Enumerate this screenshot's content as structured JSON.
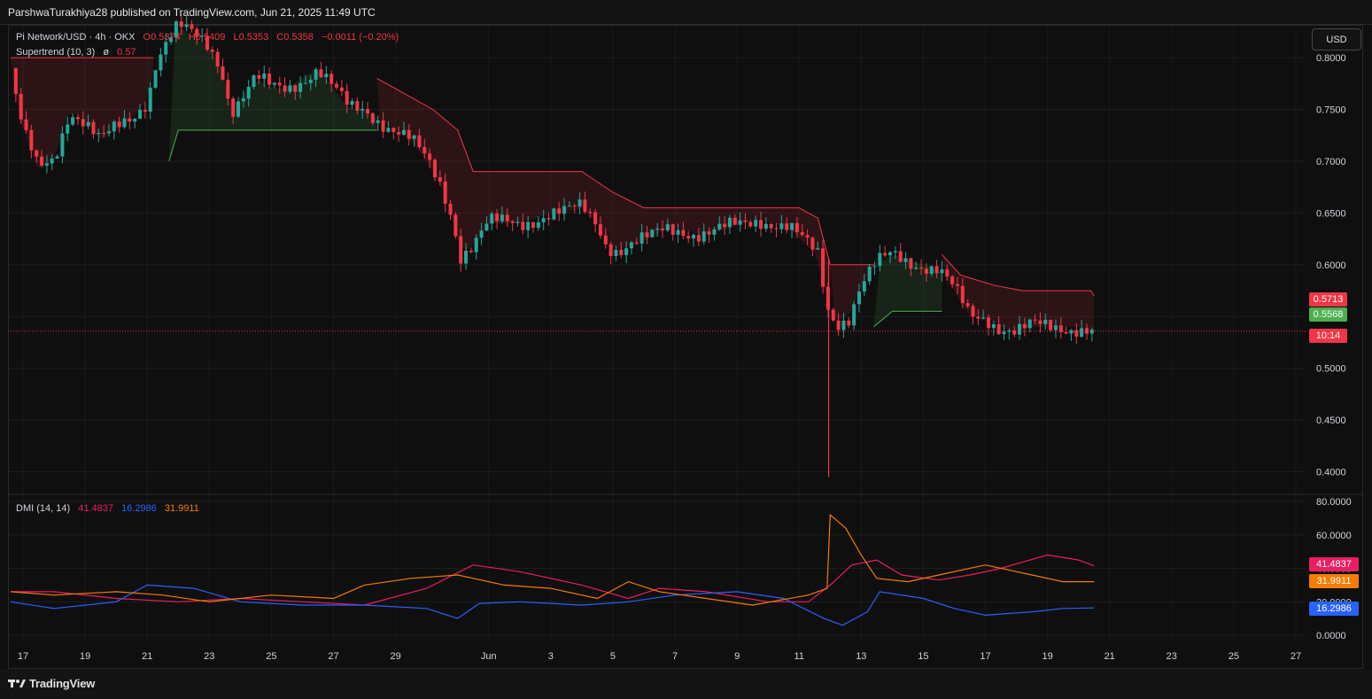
{
  "header": {
    "publisher_line": "ParshwaTurakhiya28 published on TradingView.com, Jun 21, 2025 11:49 UTC"
  },
  "legend": {
    "symbol": "Pi Network/USD · 4h · OKX",
    "open": "O0.5374",
    "high": "H0.5409",
    "low": "L0.5353",
    "close": "C0.5358",
    "change": "−0.0011 (−0.20%)",
    "supertrend_label": "Supertrend (10, 3)",
    "supertrend_icon": "ø",
    "supertrend_value": "0.57"
  },
  "dmi_legend": {
    "label": "DMI (14, 14)",
    "plus_di": "41.4837",
    "minus_di": "16.2986",
    "adx": "31.9911"
  },
  "currency_button": "USD",
  "price_tags": [
    {
      "text": "0.5713",
      "color": "#f23645"
    },
    {
      "text": "0.5568",
      "color": "#4caf50"
    },
    {
      "text": "10:14",
      "color": "#f23645"
    }
  ],
  "dmi_tags": [
    {
      "text": "41.4837",
      "color": "#e91e63"
    },
    {
      "text": "31.9911",
      "color": "#f57c00"
    },
    {
      "text": "16.2986",
      "color": "#2962ff"
    }
  ],
  "branding": "TradingView",
  "colors": {
    "up": "#26a69a",
    "down": "#f23645",
    "plus_di": "#e91e63",
    "minus_di": "#2962ff",
    "adx": "#f57c00",
    "st_up": "#4caf50",
    "st_down": "#f23645"
  },
  "chart_data": [
    {
      "type": "candlestick",
      "title": "Pi Network/USD · 4h · OKX",
      "ylim": [
        0.38,
        0.83
      ],
      "y_ticks": [
        "0.8000",
        "0.7500",
        "0.7000",
        "0.6500",
        "0.6000",
        "0.5500",
        "0.5000",
        "0.4500",
        "0.4000"
      ],
      "x_ticks": [
        "17",
        "19",
        "21",
        "23",
        "25",
        "27",
        "29",
        "Jun",
        "3",
        "5",
        "7",
        "9",
        "11",
        "13",
        "15",
        "17",
        "19",
        "21",
        "23",
        "25",
        "27"
      ],
      "x_range_days": [
        16.6,
        58.2
      ],
      "last_price": 0.5358,
      "close_path": [
        [
          16.6,
          0.79
        ],
        [
          17.0,
          0.73
        ],
        [
          17.5,
          0.69
        ],
        [
          18.0,
          0.7
        ],
        [
          18.5,
          0.75
        ],
        [
          19.0,
          0.74
        ],
        [
          19.5,
          0.72
        ],
        [
          20.0,
          0.73
        ],
        [
          20.5,
          0.74
        ],
        [
          21.0,
          0.76
        ],
        [
          21.3,
          0.8
        ],
        [
          21.7,
          0.82
        ],
        [
          22.0,
          0.83
        ],
        [
          22.5,
          0.82
        ],
        [
          23.0,
          0.81
        ],
        [
          23.4,
          0.79
        ],
        [
          23.7,
          0.75
        ],
        [
          24.0,
          0.76
        ],
        [
          24.5,
          0.78
        ],
        [
          25.0,
          0.77
        ],
        [
          25.5,
          0.77
        ],
        [
          26.0,
          0.78
        ],
        [
          26.5,
          0.79
        ],
        [
          27.0,
          0.77
        ],
        [
          27.5,
          0.75
        ],
        [
          28.0,
          0.75
        ],
        [
          28.5,
          0.74
        ],
        [
          29.0,
          0.73
        ],
        [
          29.5,
          0.72
        ],
        [
          30.0,
          0.7
        ],
        [
          30.4,
          0.68
        ],
        [
          30.8,
          0.65
        ],
        [
          31.1,
          0.61
        ],
        [
          31.5,
          0.62
        ],
        [
          32.0,
          0.64
        ],
        [
          32.5,
          0.64
        ],
        [
          33.0,
          0.64
        ],
        [
          33.5,
          0.645
        ],
        [
          34.0,
          0.65
        ],
        [
          34.5,
          0.65
        ],
        [
          35.0,
          0.655
        ],
        [
          35.5,
          0.64
        ],
        [
          35.8,
          0.62
        ],
        [
          36.2,
          0.615
        ],
        [
          36.7,
          0.62
        ],
        [
          37.2,
          0.625
        ],
        [
          37.7,
          0.635
        ],
        [
          38.2,
          0.635
        ],
        [
          38.7,
          0.63
        ],
        [
          39.2,
          0.63
        ],
        [
          39.7,
          0.635
        ],
        [
          40.2,
          0.64
        ],
        [
          40.7,
          0.645
        ],
        [
          41.2,
          0.64
        ],
        [
          41.7,
          0.635
        ],
        [
          42.2,
          0.62
        ],
        [
          42.6,
          0.61
        ],
        [
          42.9,
          0.56
        ],
        [
          43.2,
          0.545
        ],
        [
          43.6,
          0.55
        ],
        [
          44.0,
          0.58
        ],
        [
          44.5,
          0.6
        ],
        [
          45.0,
          0.61
        ],
        [
          45.5,
          0.605
        ],
        [
          46.0,
          0.6
        ],
        [
          46.5,
          0.595
        ],
        [
          47.0,
          0.575
        ],
        [
          47.5,
          0.55
        ],
        [
          48.0,
          0.55
        ],
        [
          48.5,
          0.54
        ],
        [
          49.0,
          0.535
        ],
        [
          49.5,
          0.54
        ],
        [
          50.0,
          0.54
        ],
        [
          50.5,
          0.54
        ],
        [
          51.0,
          0.54
        ],
        [
          51.5,
          0.5358
        ]
      ],
      "wicks": [
        {
          "x": 42.95,
          "low": 0.395,
          "high": 0.605
        }
      ],
      "supertrend": {
        "label": "Supertrend (10, 3)",
        "segments": [
          {
            "trend": "down",
            "points": [
              [
                16.6,
                0.8
              ],
              [
                18.5,
                0.8
              ],
              [
                21.2,
                0.8
              ]
            ]
          },
          {
            "trend": "up",
            "points": [
              [
                21.7,
                0.7
              ],
              [
                22.0,
                0.73
              ],
              [
                28.4,
                0.73
              ]
            ]
          },
          {
            "trend": "down",
            "points": [
              [
                28.4,
                0.78
              ],
              [
                29.0,
                0.77
              ],
              [
                29.6,
                0.76
              ],
              [
                30.2,
                0.75
              ],
              [
                31.0,
                0.73
              ],
              [
                31.5,
                0.69
              ],
              [
                35.0,
                0.69
              ],
              [
                36.0,
                0.67
              ],
              [
                37.0,
                0.655
              ],
              [
                42.0,
                0.655
              ],
              [
                42.6,
                0.645
              ],
              [
                43.0,
                0.6
              ]
            ]
          },
          {
            "trend": "down",
            "points": [
              [
                43.0,
                0.6
              ],
              [
                44.4,
                0.6
              ]
            ]
          },
          {
            "trend": "up",
            "points": [
              [
                44.4,
                0.54
              ],
              [
                45.0,
                0.555
              ],
              [
                46.6,
                0.555
              ]
            ]
          },
          {
            "trend": "down",
            "points": [
              [
                46.6,
                0.61
              ],
              [
                47.2,
                0.59
              ],
              [
                48.3,
                0.58
              ],
              [
                49.2,
                0.575
              ],
              [
                51.4,
                0.575
              ],
              [
                51.5,
                0.57
              ]
            ]
          }
        ]
      }
    },
    {
      "type": "line",
      "title": "DMI (14, 14)",
      "ylim": [
        0,
        80
      ],
      "y_ticks": [
        "80.0000",
        "60.0000",
        "40.0000",
        "20.0000",
        "0.0000"
      ],
      "series": [
        {
          "name": "+DI",
          "color": "#e91e63",
          "points": [
            [
              16.6,
              26
            ],
            [
              18,
              26
            ],
            [
              20,
              22
            ],
            [
              22,
              20
            ],
            [
              24,
              22
            ],
            [
              26,
              20
            ],
            [
              28,
              18
            ],
            [
              30,
              28
            ],
            [
              31.5,
              42
            ],
            [
              33,
              38
            ],
            [
              35,
              30
            ],
            [
              36.5,
              22
            ],
            [
              37.5,
              28
            ],
            [
              39,
              26
            ],
            [
              41,
              20
            ],
            [
              42.3,
              20
            ],
            [
              43.0,
              30
            ],
            [
              43.7,
              42
            ],
            [
              44.5,
              45
            ],
            [
              45.3,
              36
            ],
            [
              46.5,
              33
            ],
            [
              47.5,
              36
            ],
            [
              48.5,
              40
            ],
            [
              50.0,
              48
            ],
            [
              51.0,
              45
            ],
            [
              51.5,
              41.4837
            ]
          ]
        },
        {
          "name": "−DI",
          "color": "#2962ff",
          "points": [
            [
              16.6,
              20
            ],
            [
              18,
              16
            ],
            [
              20,
              20
            ],
            [
              21,
              30
            ],
            [
              22.5,
              28
            ],
            [
              24,
              20
            ],
            [
              26,
              18
            ],
            [
              28,
              18
            ],
            [
              30,
              16
            ],
            [
              31.0,
              10
            ],
            [
              31.7,
              19
            ],
            [
              33,
              20
            ],
            [
              35,
              18
            ],
            [
              36.5,
              20
            ],
            [
              38,
              24
            ],
            [
              40,
              26
            ],
            [
              41.5,
              22
            ],
            [
              42.8,
              10
            ],
            [
              43.4,
              6
            ],
            [
              44.2,
              14
            ],
            [
              44.6,
              26
            ],
            [
              46,
              22
            ],
            [
              47,
              16
            ],
            [
              48,
              12
            ],
            [
              49.5,
              14
            ],
            [
              50.5,
              16
            ],
            [
              51.5,
              16.2986
            ]
          ]
        },
        {
          "name": "ADX",
          "color": "#f57c00",
          "points": [
            [
              16.6,
              26
            ],
            [
              18,
              24
            ],
            [
              20,
              26
            ],
            [
              21.5,
              24
            ],
            [
              23,
              20
            ],
            [
              25,
              24
            ],
            [
              27,
              22
            ],
            [
              28,
              30
            ],
            [
              29.5,
              34
            ],
            [
              31,
              36
            ],
            [
              32.5,
              30
            ],
            [
              34,
              28
            ],
            [
              35.5,
              22
            ],
            [
              36.5,
              32
            ],
            [
              37.5,
              26
            ],
            [
              39,
              22
            ],
            [
              40.5,
              18
            ],
            [
              42.3,
              24
            ],
            [
              42.9,
              28
            ],
            [
              43.0,
              72
            ],
            [
              43.5,
              64
            ],
            [
              44.0,
              48
            ],
            [
              44.5,
              34
            ],
            [
              45.5,
              32
            ],
            [
              46.5,
              36
            ],
            [
              48.0,
              42
            ],
            [
              49.5,
              36
            ],
            [
              50.5,
              32
            ],
            [
              51.5,
              31.9911
            ]
          ]
        }
      ]
    }
  ]
}
